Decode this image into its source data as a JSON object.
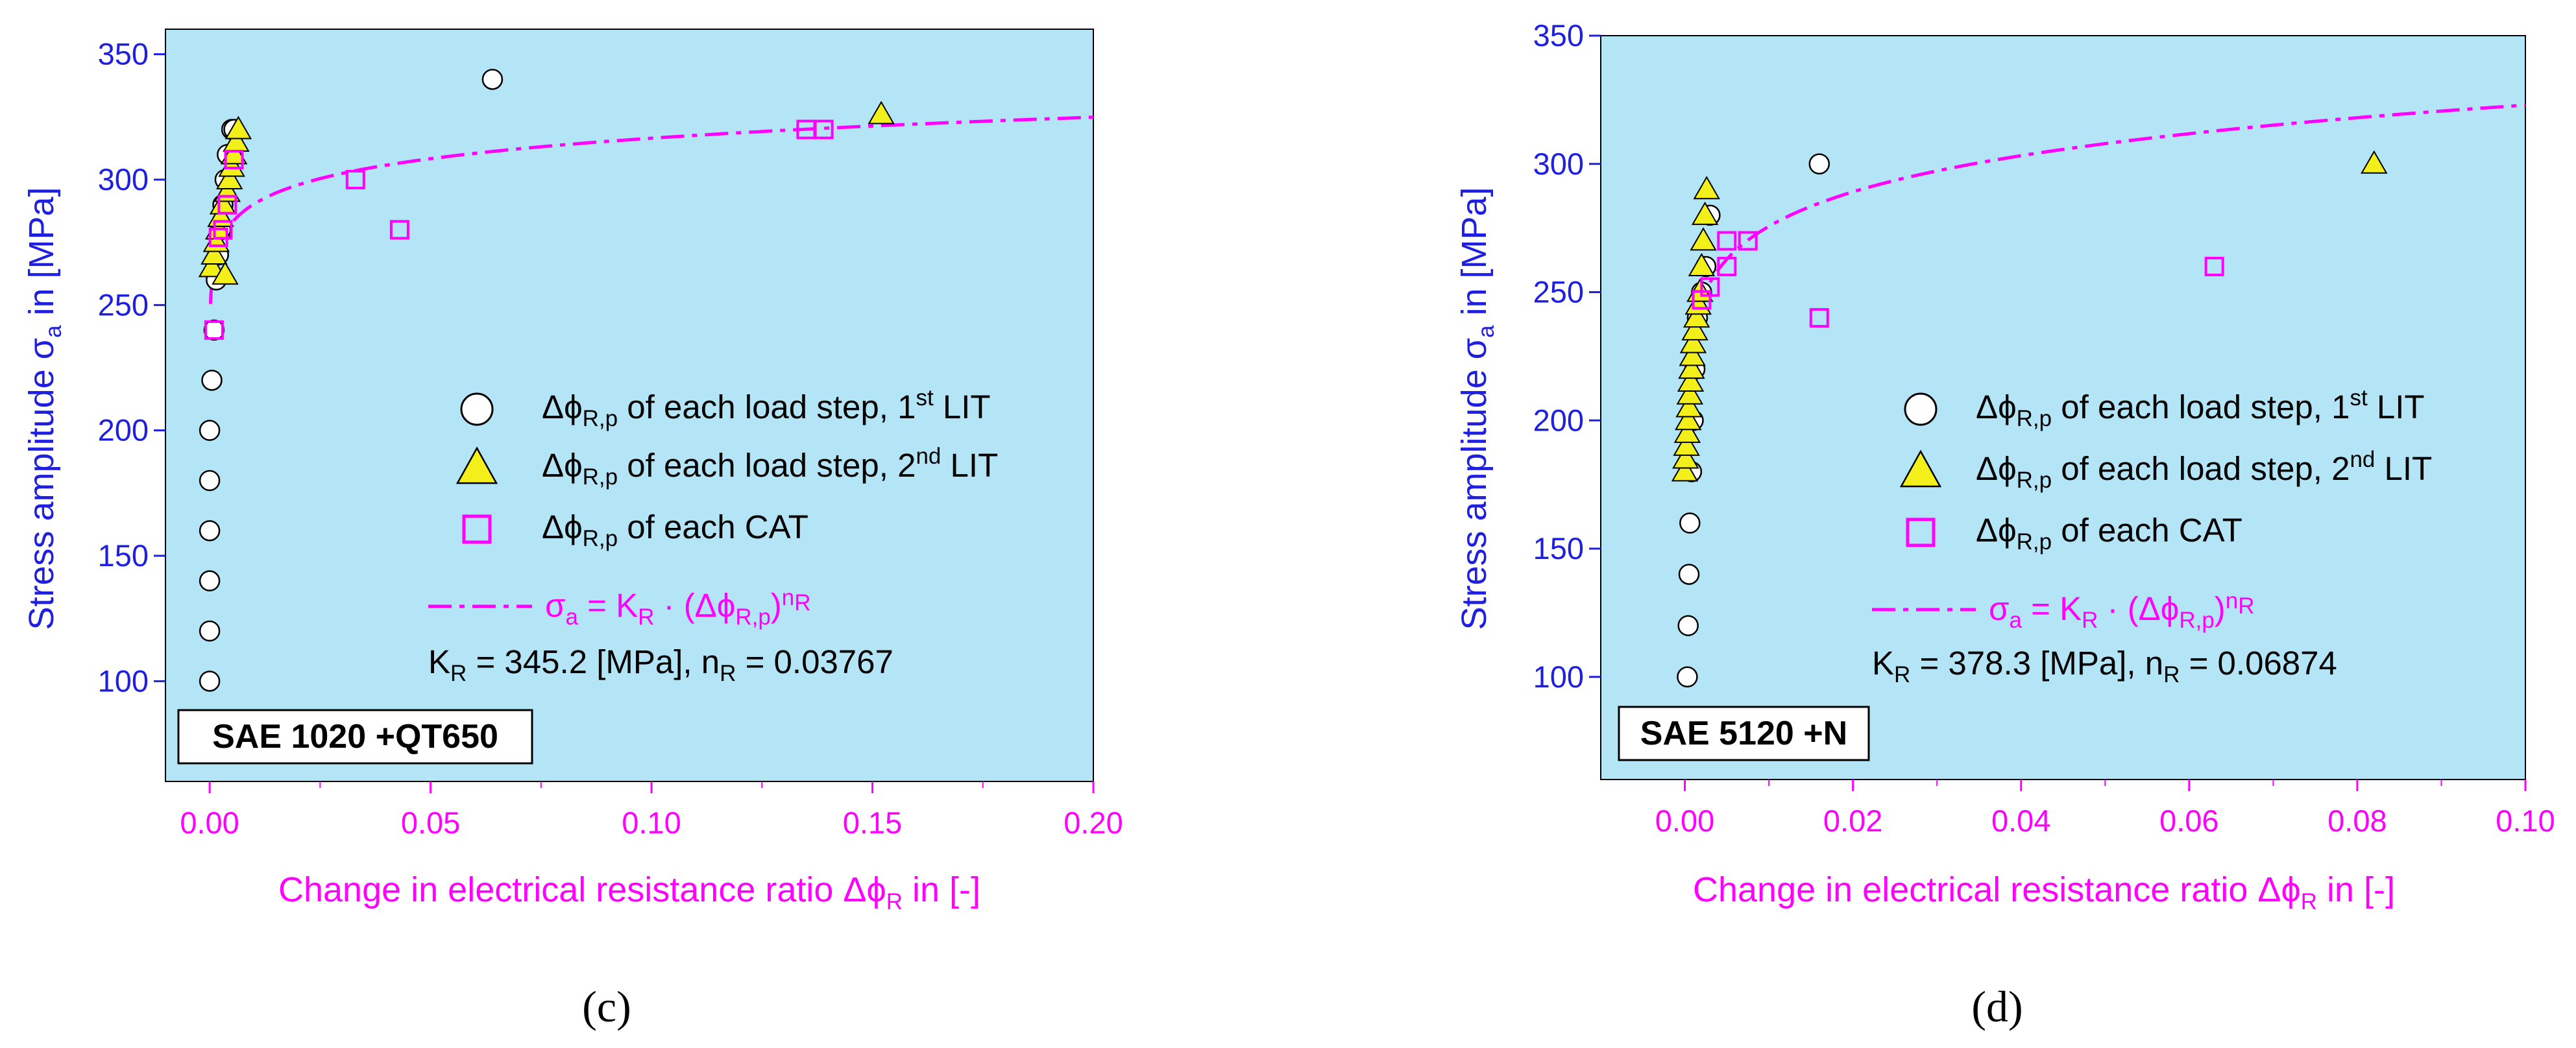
{
  "colors": {
    "plot_bg": "#b3e5f7",
    "y_axis": "#1f1fe0",
    "x_axis": "#ff00ff",
    "fit": "#ff00ff",
    "triangle_fill": "#f2ef1a",
    "square": "#ff00ff"
  },
  "chart_data": [
    {
      "type": "scatter",
      "panel_label": "(c)",
      "material": "SAE 1020 +QT650",
      "xlabel": "Change in electrical resistance ratio Δϕ_R in [-]",
      "ylabel": "Stress amplitude σ_a in [MPa]",
      "xlim": [
        -0.01,
        0.2
      ],
      "ylim": [
        60,
        360
      ],
      "xticks": [
        0.0,
        0.05,
        0.1,
        0.15,
        0.2
      ],
      "xtick_labels": [
        "0.00",
        "0.05",
        "0.10",
        "0.15",
        "0.20"
      ],
      "yticks": [
        100,
        150,
        200,
        250,
        300,
        350
      ],
      "ytick_labels": [
        "100",
        "150",
        "200",
        "250",
        "300",
        "350"
      ],
      "fit": {
        "K": 345.2,
        "n": 0.03767,
        "x_start": 0.0002,
        "x_end": 0.2
      },
      "fit_text": {
        "k_label": "K",
        "k_rest": " = 345.2 [MPa],  n",
        "n_rest": " = 0.03767"
      },
      "legend": [
        {
          "marker": "circle",
          "text": "Δϕ",
          "sub": "R,p",
          "text2": " of each load step, 1",
          "sup": "st",
          "text3": " LIT"
        },
        {
          "marker": "triangle",
          "text": "Δϕ",
          "sub": "R,p",
          "text2": " of each load step, 2",
          "sup": "nd",
          "text3": " LIT"
        },
        {
          "marker": "square",
          "text": "Δϕ",
          "sub": "R,p",
          "text2": " of each CAT",
          "sup": "",
          "text3": ""
        },
        {
          "marker": "line",
          "text": "σ",
          "sub": "a",
          "text2": " = K",
          "sup": "",
          "text3": " · (Δϕ"
        }
      ],
      "series": [
        {
          "name": "1st LIT",
          "marker": "circle",
          "x": [
            0.0,
            0.0,
            0.0,
            0.0,
            0.0,
            0.0,
            0.0005,
            0.001,
            0.0015,
            0.002,
            0.0025,
            0.003,
            0.0035,
            0.004,
            0.005,
            0.0055,
            0.064
          ],
          "y": [
            100,
            120,
            140,
            160,
            180,
            200,
            220,
            240,
            260,
            270,
            280,
            290,
            300,
            310,
            320,
            320,
            340
          ]
        },
        {
          "name": "2nd LIT",
          "marker": "triangle",
          "x": [
            0.0005,
            0.001,
            0.0015,
            0.002,
            0.0025,
            0.003,
            0.0035,
            0.004,
            0.0045,
            0.005,
            0.0055,
            0.006,
            0.0065,
            0.152
          ],
          "y": [
            265,
            270,
            275,
            280,
            285,
            290,
            262,
            295,
            300,
            305,
            310,
            315,
            320,
            326
          ]
        },
        {
          "name": "CAT",
          "marker": "square",
          "x": [
            0.001,
            0.002,
            0.003,
            0.004,
            0.0055,
            0.033,
            0.043,
            0.135,
            0.139
          ],
          "y": [
            240,
            277,
            280,
            290,
            308,
            300,
            280,
            320,
            320
          ]
        }
      ]
    },
    {
      "type": "scatter",
      "panel_label": "(d)",
      "material": "SAE 5120 +N",
      "xlabel": "Change in electrical resistance ratio Δϕ_R in [-]",
      "ylabel": "Stress amplitude σ_a in [MPa]",
      "xlim": [
        -0.01,
        0.1
      ],
      "ylim": [
        60,
        350
      ],
      "xticks": [
        0.0,
        0.02,
        0.04,
        0.06,
        0.08,
        0.1
      ],
      "xtick_labels": [
        "0.00",
        "0.02",
        "0.04",
        "0.06",
        "0.08",
        "0.10"
      ],
      "yticks": [
        100,
        150,
        200,
        250,
        300,
        350
      ],
      "ytick_labels": [
        "100",
        "150",
        "200",
        "250",
        "300",
        "350"
      ],
      "fit": {
        "K": 378.3,
        "n": 0.06874,
        "x_start": 5e-05,
        "x_end": 0.1
      },
      "fit_text": {
        "k_label": "K",
        "k_rest": " = 378.3 [MPa],  n",
        "n_rest": " = 0.06874"
      },
      "legend": [
        {
          "marker": "circle",
          "text": "Δϕ",
          "sub": "R,p",
          "text2": " of each load step, 1",
          "sup": "st",
          "text3": " LIT"
        },
        {
          "marker": "triangle",
          "text": "Δϕ",
          "sub": "R,p",
          "text2": " of each load step, 2",
          "sup": "nd",
          "text3": " LIT"
        },
        {
          "marker": "square",
          "text": "Δϕ",
          "sub": "R,p",
          "text2": " of each CAT",
          "sup": "",
          "text3": ""
        },
        {
          "marker": "line",
          "text": "σ",
          "sub": "a",
          "text2": " = K",
          "sup": "",
          "text3": " · (Δϕ"
        }
      ],
      "series": [
        {
          "name": "1st LIT",
          "marker": "circle",
          "x": [
            0.0003,
            0.0004,
            0.0005,
            0.0006,
            0.0008,
            0.001,
            0.0012,
            0.0015,
            0.002,
            0.0025,
            0.003,
            0.016
          ],
          "y": [
            100,
            120,
            140,
            160,
            180,
            200,
            220,
            240,
            250,
            260,
            280,
            300
          ]
        },
        {
          "name": "2nd LIT",
          "marker": "triangle",
          "x": [
            0.0,
            0.0001,
            0.0002,
            0.0003,
            0.0004,
            0.0005,
            0.0006,
            0.0007,
            0.0008,
            0.0009,
            0.001,
            0.0012,
            0.0014,
            0.0016,
            0.0018,
            0.002,
            0.0022,
            0.0024,
            0.0026,
            0.082
          ],
          "y": [
            180,
            185,
            190,
            195,
            200,
            205,
            210,
            215,
            220,
            225,
            230,
            235,
            240,
            245,
            250,
            260,
            270,
            280,
            290,
            300
          ]
        },
        {
          "name": "CAT",
          "marker": "square",
          "x": [
            0.002,
            0.003,
            0.005,
            0.005,
            0.0075,
            0.016,
            0.063
          ],
          "y": [
            247,
            252,
            260,
            270,
            270,
            240,
            260
          ]
        }
      ]
    }
  ],
  "axis_label_parts": {
    "x_main": "Change in electrical resistance ratio Δϕ",
    "x_sub": "R",
    "x_tail": " in [-]",
    "y_main": "Stress amplitude σ",
    "y_sub": "a",
    "y_tail": " in [MPa]"
  },
  "fit_legend_parts": {
    "K": "K",
    "R": "R",
    "phi": "R,p",
    "n": "n",
    "close": ")"
  }
}
